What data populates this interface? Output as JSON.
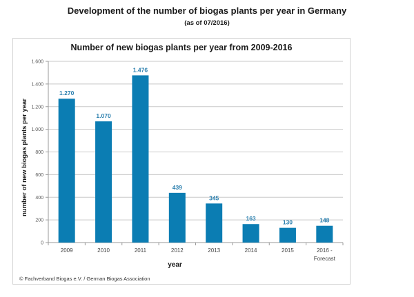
{
  "header": {
    "title": "Development of the number of biogas plants per year in Germany",
    "subtitle": "(as of 07/2016)"
  },
  "chart_data": {
    "type": "bar",
    "title": "Number of new biogas plants per year from 2009-2016",
    "xlabel": "year",
    "ylabel": "number of new biogas plants per year",
    "categories": [
      "2009",
      "2010",
      "2011",
      "2012",
      "2013",
      "2014",
      "2015",
      "2016 - Forecast"
    ],
    "values": [
      1270,
      1070,
      1476,
      439,
      345,
      163,
      130,
      148
    ],
    "value_labels": [
      "1.270",
      "1.070",
      "1.476",
      "439",
      "345",
      "163",
      "130",
      "148"
    ],
    "ylim": [
      0,
      1600
    ],
    "yticks": [
      0,
      200,
      400,
      600,
      800,
      1000,
      1200,
      1400,
      1600
    ],
    "ytick_labels": [
      "0",
      "200",
      "400",
      "600",
      "800",
      "1.000",
      "1.200",
      "1.400",
      "1.600"
    ],
    "grid": true,
    "bar_color": "#0b7db3",
    "label_color": "#2a7fae"
  },
  "footer": {
    "source": "© Fachverband Biogas e.V. / German Biogas Association"
  }
}
